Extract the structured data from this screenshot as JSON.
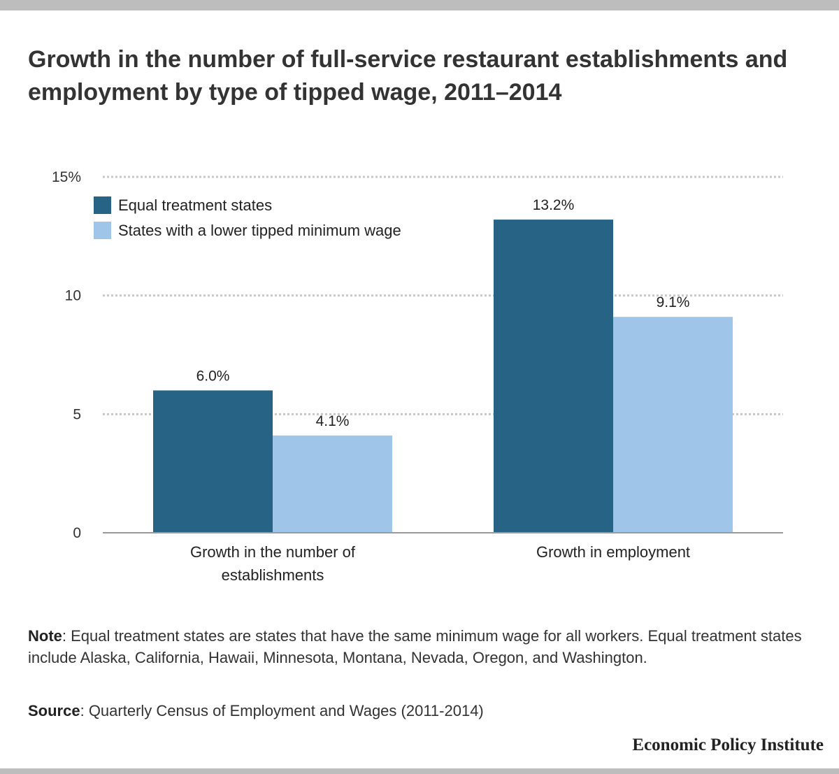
{
  "header": {
    "title": "Growth in the number of full-service restaurant establishments and employment by type of tipped wage, 2011–2014"
  },
  "chart_data": {
    "type": "bar",
    "title": "Growth in the number of full-service restaurant establishments and employment by type of tipped wage, 2011–2014",
    "categories": [
      "Growth in the number of establishments",
      "Growth in employment"
    ],
    "category_lines": [
      [
        "Growth in the number of",
        "establishments"
      ],
      [
        "Growth in employment"
      ]
    ],
    "series": [
      {
        "name": "Equal treatment states",
        "color": "#266385",
        "values": [
          6.0,
          13.2
        ],
        "labels": [
          "6.0%",
          "13.2%"
        ]
      },
      {
        "name": "States with a lower tipped minimum wage",
        "color": "#9fc5e8",
        "values": [
          4.1,
          9.1
        ],
        "labels": [
          "4.1%",
          "9.1%"
        ]
      }
    ],
    "ylim": [
      0,
      15
    ],
    "yticks": [
      0,
      5,
      10,
      15
    ],
    "ytick_labels": [
      "0",
      "5",
      "10",
      "15%"
    ],
    "xlabel": "",
    "ylabel": "",
    "grid": true,
    "legend": "top-left"
  },
  "footer": {
    "note_label": "Note",
    "note_text": ": Equal treatment states are states that have the same minimum wage for all workers. Equal treatment states include Alaska, California, Hawaii, Minnesota, Montana, Nevada, Oregon, and Washington.",
    "source_label": "Source",
    "source_text": ": Quarterly Census of Employment and Wages (2011-2014)",
    "brand": "Economic Policy Institute"
  }
}
